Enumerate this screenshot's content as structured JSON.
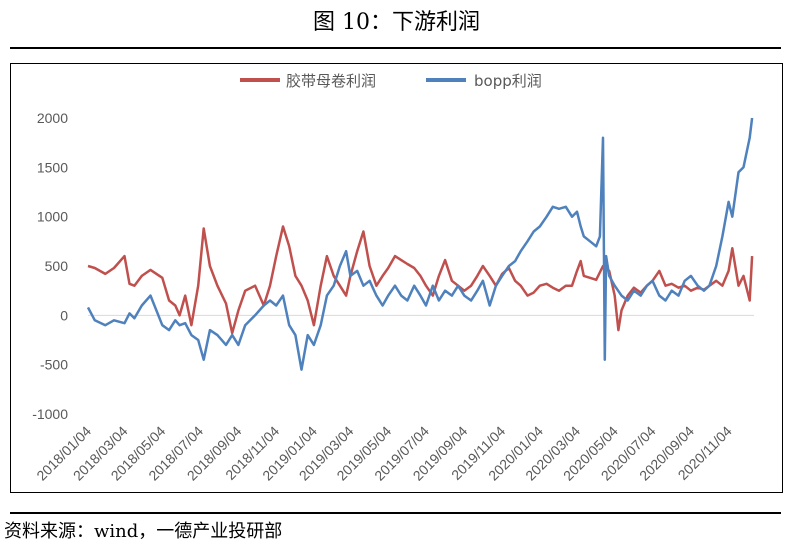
{
  "figure_title": "图 10：下游利润",
  "source": "资料来源：wind，一德产业投研部",
  "chart_data": {
    "type": "line",
    "title": "",
    "xlabel": "",
    "ylabel": "",
    "ylim": [
      -1000,
      2000
    ],
    "yticks": [
      2000,
      1500,
      1000,
      500,
      0,
      -500,
      -1000
    ],
    "xticks": [
      "2018/01/04",
      "2018/03/04",
      "2018/05/04",
      "2018/07/04",
      "2018/09/04",
      "2018/11/04",
      "2019/01/04",
      "2019/03/04",
      "2019/05/04",
      "2019/07/04",
      "2019/09/04",
      "2019/11/04",
      "2020/01/04",
      "2020/03/04",
      "2020/05/04",
      "2020/07/04",
      "2020/09/04",
      "2020/11/04"
    ],
    "x_range": [
      "2018/01/04",
      "2020/12/15"
    ],
    "grid": "zero-line only",
    "legend_position": "top",
    "series": [
      {
        "name": "胶带母卷利润",
        "color": "#c0504d",
        "points": [
          [
            "2018/01/04",
            500
          ],
          [
            "2018/01/15",
            480
          ],
          [
            "2018/02/01",
            420
          ],
          [
            "2018/02/15",
            480
          ],
          [
            "2018/03/04",
            600
          ],
          [
            "2018/03/12",
            320
          ],
          [
            "2018/03/20",
            300
          ],
          [
            "2018/04/01",
            400
          ],
          [
            "2018/04/15",
            460
          ],
          [
            "2018/05/04",
            380
          ],
          [
            "2018/05/15",
            150
          ],
          [
            "2018/05/25",
            100
          ],
          [
            "2018/06/01",
            0
          ],
          [
            "2018/06/10",
            200
          ],
          [
            "2018/06/20",
            -100
          ],
          [
            "2018/07/01",
            300
          ],
          [
            "2018/07/10",
            880
          ],
          [
            "2018/07/20",
            500
          ],
          [
            "2018/08/01",
            300
          ],
          [
            "2018/08/15",
            120
          ],
          [
            "2018/08/25",
            -180
          ],
          [
            "2018/09/04",
            50
          ],
          [
            "2018/09/15",
            250
          ],
          [
            "2018/10/01",
            300
          ],
          [
            "2018/10/15",
            100
          ],
          [
            "2018/10/25",
            300
          ],
          [
            "2018/11/04",
            600
          ],
          [
            "2018/11/15",
            900
          ],
          [
            "2018/11/25",
            700
          ],
          [
            "2018/12/05",
            400
          ],
          [
            "2018/12/15",
            300
          ],
          [
            "2018/12/25",
            150
          ],
          [
            "2019/01/04",
            -100
          ],
          [
            "2019/01/15",
            300
          ],
          [
            "2019/01/25",
            600
          ],
          [
            "2019/02/05",
            400
          ],
          [
            "2019/02/15",
            300
          ],
          [
            "2019/02/25",
            200
          ],
          [
            "2019/03/04",
            400
          ],
          [
            "2019/03/15",
            650
          ],
          [
            "2019/03/25",
            850
          ],
          [
            "2019/04/04",
            500
          ],
          [
            "2019/04/15",
            300
          ],
          [
            "2019/04/25",
            400
          ],
          [
            "2019/05/04",
            480
          ],
          [
            "2019/05/15",
            600
          ],
          [
            "2019/05/25",
            560
          ],
          [
            "2019/06/04",
            520
          ],
          [
            "2019/06/15",
            480
          ],
          [
            "2019/06/25",
            400
          ],
          [
            "2019/07/04",
            300
          ],
          [
            "2019/07/15",
            200
          ],
          [
            "2019/07/25",
            400
          ],
          [
            "2019/08/04",
            560
          ],
          [
            "2019/08/15",
            350
          ],
          [
            "2019/08/25",
            300
          ],
          [
            "2019/09/04",
            250
          ],
          [
            "2019/09/15",
            300
          ],
          [
            "2019/09/25",
            400
          ],
          [
            "2019/10/04",
            500
          ],
          [
            "2019/10/15",
            400
          ],
          [
            "2019/10/25",
            300
          ],
          [
            "2019/11/04",
            420
          ],
          [
            "2019/11/15",
            480
          ],
          [
            "2019/11/25",
            350
          ],
          [
            "2019/12/04",
            300
          ],
          [
            "2019/12/15",
            200
          ],
          [
            "2019/12/25",
            230
          ],
          [
            "2020/01/04",
            300
          ],
          [
            "2020/01/15",
            320
          ],
          [
            "2020/01/25",
            280
          ],
          [
            "2020/02/04",
            250
          ],
          [
            "2020/02/15",
            300
          ],
          [
            "2020/02/25",
            300
          ],
          [
            "2020/03/04",
            450
          ],
          [
            "2020/03/10",
            550
          ],
          [
            "2020/03/15",
            400
          ],
          [
            "2020/03/25",
            380
          ],
          [
            "2020/04/04",
            360
          ],
          [
            "2020/04/15",
            500
          ],
          [
            "2020/04/25",
            450
          ],
          [
            "2020/05/04",
            200
          ],
          [
            "2020/05/10",
            -150
          ],
          [
            "2020/05/15",
            50
          ],
          [
            "2020/05/25",
            200
          ],
          [
            "2020/06/04",
            280
          ],
          [
            "2020/06/15",
            230
          ],
          [
            "2020/06/25",
            300
          ],
          [
            "2020/07/04",
            350
          ],
          [
            "2020/07/15",
            450
          ],
          [
            "2020/07/25",
            300
          ],
          [
            "2020/08/04",
            320
          ],
          [
            "2020/08/15",
            280
          ],
          [
            "2020/08/25",
            300
          ],
          [
            "2020/09/04",
            250
          ],
          [
            "2020/09/15",
            280
          ],
          [
            "2020/09/25",
            260
          ],
          [
            "2020/10/04",
            300
          ],
          [
            "2020/10/15",
            350
          ],
          [
            "2020/10/25",
            300
          ],
          [
            "2020/11/04",
            450
          ],
          [
            "2020/11/10",
            680
          ],
          [
            "2020/11/20",
            300
          ],
          [
            "2020/11/28",
            400
          ],
          [
            "2020/12/08",
            150
          ],
          [
            "2020/12/12",
            600
          ]
        ]
      },
      {
        "name": "bopp利润",
        "color": "#4f81bd",
        "points": [
          [
            "2018/01/04",
            80
          ],
          [
            "2018/01/15",
            -50
          ],
          [
            "2018/02/01",
            -100
          ],
          [
            "2018/02/15",
            -50
          ],
          [
            "2018/03/04",
            -80
          ],
          [
            "2018/03/12",
            20
          ],
          [
            "2018/03/20",
            -30
          ],
          [
            "2018/04/01",
            100
          ],
          [
            "2018/04/15",
            200
          ],
          [
            "2018/05/04",
            -100
          ],
          [
            "2018/05/15",
            -150
          ],
          [
            "2018/05/25",
            -50
          ],
          [
            "2018/06/01",
            -100
          ],
          [
            "2018/06/10",
            -80
          ],
          [
            "2018/06/20",
            -200
          ],
          [
            "2018/07/01",
            -250
          ],
          [
            "2018/07/10",
            -450
          ],
          [
            "2018/07/20",
            -150
          ],
          [
            "2018/08/01",
            -200
          ],
          [
            "2018/08/15",
            -300
          ],
          [
            "2018/08/25",
            -200
          ],
          [
            "2018/09/04",
            -300
          ],
          [
            "2018/09/15",
            -100
          ],
          [
            "2018/10/01",
            0
          ],
          [
            "2018/10/15",
            100
          ],
          [
            "2018/10/25",
            150
          ],
          [
            "2018/11/04",
            100
          ],
          [
            "2018/11/15",
            200
          ],
          [
            "2018/11/25",
            -100
          ],
          [
            "2018/12/05",
            -200
          ],
          [
            "2018/12/15",
            -550
          ],
          [
            "2018/12/25",
            -200
          ],
          [
            "2019/01/04",
            -300
          ],
          [
            "2019/01/15",
            -100
          ],
          [
            "2019/01/25",
            200
          ],
          [
            "2019/02/05",
            300
          ],
          [
            "2019/02/15",
            500
          ],
          [
            "2019/02/25",
            650
          ],
          [
            "2019/03/04",
            400
          ],
          [
            "2019/03/15",
            450
          ],
          [
            "2019/03/25",
            300
          ],
          [
            "2019/04/04",
            350
          ],
          [
            "2019/04/15",
            200
          ],
          [
            "2019/04/25",
            100
          ],
          [
            "2019/05/04",
            200
          ],
          [
            "2019/05/15",
            300
          ],
          [
            "2019/05/25",
            200
          ],
          [
            "2019/06/04",
            150
          ],
          [
            "2019/06/15",
            300
          ],
          [
            "2019/06/25",
            200
          ],
          [
            "2019/07/04",
            100
          ],
          [
            "2019/07/15",
            300
          ],
          [
            "2019/07/25",
            150
          ],
          [
            "2019/08/04",
            250
          ],
          [
            "2019/08/15",
            200
          ],
          [
            "2019/08/25",
            300
          ],
          [
            "2019/09/04",
            200
          ],
          [
            "2019/09/15",
            150
          ],
          [
            "2019/09/25",
            250
          ],
          [
            "2019/10/04",
            350
          ],
          [
            "2019/10/15",
            100
          ],
          [
            "2019/10/25",
            300
          ],
          [
            "2019/11/04",
            400
          ],
          [
            "2019/11/15",
            500
          ],
          [
            "2019/11/25",
            550
          ],
          [
            "2019/12/04",
            650
          ],
          [
            "2019/12/15",
            750
          ],
          [
            "2019/12/25",
            850
          ],
          [
            "2020/01/04",
            900
          ],
          [
            "2020/01/15",
            1000
          ],
          [
            "2020/01/25",
            1100
          ],
          [
            "2020/02/04",
            1080
          ],
          [
            "2020/02/15",
            1100
          ],
          [
            "2020/02/25",
            1000
          ],
          [
            "2020/03/04",
            1050
          ],
          [
            "2020/03/10",
            900
          ],
          [
            "2020/03/15",
            800
          ],
          [
            "2020/03/25",
            750
          ],
          [
            "2020/04/04",
            700
          ],
          [
            "2020/04/10",
            800
          ],
          [
            "2020/04/15",
            1800
          ],
          [
            "2020/04/18",
            -450
          ],
          [
            "2020/04/20",
            600
          ],
          [
            "2020/04/25",
            400
          ],
          [
            "2020/05/04",
            300
          ],
          [
            "2020/05/15",
            200
          ],
          [
            "2020/05/25",
            150
          ],
          [
            "2020/06/04",
            250
          ],
          [
            "2020/06/15",
            200
          ],
          [
            "2020/06/25",
            300
          ],
          [
            "2020/07/04",
            350
          ],
          [
            "2020/07/15",
            200
          ],
          [
            "2020/07/25",
            150
          ],
          [
            "2020/08/04",
            250
          ],
          [
            "2020/08/15",
            200
          ],
          [
            "2020/08/25",
            350
          ],
          [
            "2020/09/04",
            400
          ],
          [
            "2020/09/15",
            300
          ],
          [
            "2020/09/25",
            250
          ],
          [
            "2020/10/04",
            300
          ],
          [
            "2020/10/15",
            500
          ],
          [
            "2020/10/25",
            800
          ],
          [
            "2020/11/04",
            1150
          ],
          [
            "2020/11/10",
            1000
          ],
          [
            "2020/11/20",
            1450
          ],
          [
            "2020/11/28",
            1500
          ],
          [
            "2020/12/08",
            1800
          ],
          [
            "2020/12/12",
            2000
          ]
        ]
      }
    ]
  }
}
